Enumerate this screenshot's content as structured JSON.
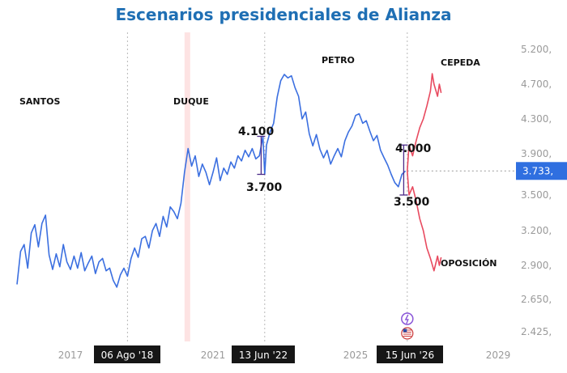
{
  "chart_data": {
    "type": "line",
    "title": "Escenarios presidenciales de Alianza",
    "y_ticks": [
      "5.200,",
      "4.700,",
      "4.300,",
      "3.900,",
      "3.500,",
      "3.200,",
      "2.900,",
      "2.650,",
      "2.425,"
    ],
    "x_ticks": [
      "2017",
      "2021",
      "2025",
      "2029"
    ],
    "x_badges": [
      "06 Ago '18",
      "13 Jun '22",
      "15 Jun '26"
    ],
    "current_price": {
      "value": 3733,
      "label": "3.733,"
    },
    "eras": [
      "SANTOS",
      "DUQUE",
      "PETRO",
      "CEPEDA",
      "OPOSICIÓN"
    ],
    "annotations": [
      "4.100",
      "3.700",
      "4.000",
      "3.500"
    ],
    "series": [
      {
        "color": "#3b6fe0",
        "points": [
          [
            2015.5,
            2760
          ],
          [
            2015.6,
            3020
          ],
          [
            2015.7,
            3080
          ],
          [
            2015.8,
            2880
          ],
          [
            2015.9,
            3180
          ],
          [
            2016.0,
            3250
          ],
          [
            2016.1,
            3060
          ],
          [
            2016.2,
            3260
          ],
          [
            2016.3,
            3330
          ],
          [
            2016.4,
            2990
          ],
          [
            2016.5,
            2870
          ],
          [
            2016.6,
            3000
          ],
          [
            2016.7,
            2890
          ],
          [
            2016.8,
            3080
          ],
          [
            2016.9,
            2930
          ],
          [
            2017.0,
            2870
          ],
          [
            2017.1,
            2980
          ],
          [
            2017.2,
            2880
          ],
          [
            2017.3,
            3010
          ],
          [
            2017.4,
            2860
          ],
          [
            2017.5,
            2920
          ],
          [
            2017.6,
            2980
          ],
          [
            2017.7,
            2840
          ],
          [
            2017.8,
            2930
          ],
          [
            2017.9,
            2960
          ],
          [
            2018.0,
            2860
          ],
          [
            2018.1,
            2880
          ],
          [
            2018.2,
            2790
          ],
          [
            2018.3,
            2740
          ],
          [
            2018.4,
            2830
          ],
          [
            2018.5,
            2880
          ],
          [
            2018.6,
            2820
          ],
          [
            2018.7,
            2960
          ],
          [
            2018.8,
            3050
          ],
          [
            2018.9,
            2970
          ],
          [
            2019.0,
            3130
          ],
          [
            2019.1,
            3150
          ],
          [
            2019.2,
            3050
          ],
          [
            2019.3,
            3200
          ],
          [
            2019.4,
            3260
          ],
          [
            2019.5,
            3150
          ],
          [
            2019.6,
            3320
          ],
          [
            2019.7,
            3230
          ],
          [
            2019.8,
            3400
          ],
          [
            2019.9,
            3360
          ],
          [
            2020.0,
            3300
          ],
          [
            2020.1,
            3430
          ],
          [
            2020.2,
            3720
          ],
          [
            2020.3,
            3960
          ],
          [
            2020.4,
            3780
          ],
          [
            2020.5,
            3880
          ],
          [
            2020.6,
            3680
          ],
          [
            2020.7,
            3800
          ],
          [
            2020.8,
            3720
          ],
          [
            2020.9,
            3600
          ],
          [
            2021.0,
            3720
          ],
          [
            2021.1,
            3860
          ],
          [
            2021.2,
            3640
          ],
          [
            2021.3,
            3760
          ],
          [
            2021.4,
            3700
          ],
          [
            2021.5,
            3820
          ],
          [
            2021.6,
            3760
          ],
          [
            2021.7,
            3880
          ],
          [
            2021.8,
            3830
          ],
          [
            2021.9,
            3940
          ],
          [
            2022.0,
            3870
          ],
          [
            2022.1,
            3960
          ],
          [
            2022.2,
            3850
          ],
          [
            2022.3,
            3880
          ],
          [
            2022.4,
            4100
          ],
          [
            2022.45,
            3700
          ],
          [
            2022.5,
            4000
          ],
          [
            2022.6,
            4150
          ],
          [
            2022.7,
            4250
          ],
          [
            2022.8,
            4550
          ],
          [
            2022.9,
            4750
          ],
          [
            2023.0,
            4840
          ],
          [
            2023.1,
            4790
          ],
          [
            2023.2,
            4820
          ],
          [
            2023.3,
            4660
          ],
          [
            2023.4,
            4560
          ],
          [
            2023.5,
            4300
          ],
          [
            2023.6,
            4380
          ],
          [
            2023.7,
            4130
          ],
          [
            2023.8,
            3990
          ],
          [
            2023.9,
            4120
          ],
          [
            2024.0,
            3950
          ],
          [
            2024.1,
            3860
          ],
          [
            2024.2,
            3940
          ],
          [
            2024.3,
            3800
          ],
          [
            2024.4,
            3880
          ],
          [
            2024.5,
            3960
          ],
          [
            2024.6,
            3870
          ],
          [
            2024.7,
            4050
          ],
          [
            2024.8,
            4150
          ],
          [
            2024.9,
            4220
          ],
          [
            2025.0,
            4340
          ],
          [
            2025.1,
            4360
          ],
          [
            2025.2,
            4250
          ],
          [
            2025.3,
            4280
          ],
          [
            2025.4,
            4160
          ],
          [
            2025.5,
            4050
          ],
          [
            2025.6,
            4110
          ],
          [
            2025.7,
            3940
          ],
          [
            2025.8,
            3860
          ],
          [
            2025.9,
            3790
          ],
          [
            2026.0,
            3700
          ],
          [
            2026.1,
            3620
          ],
          [
            2026.2,
            3580
          ],
          [
            2026.3,
            3700
          ],
          [
            2026.4,
            3733
          ]
        ]
      },
      {
        "color": "#e84a5f",
        "points": [
          [
            2026.45,
            3733
          ],
          [
            2026.5,
            4000
          ],
          [
            2026.6,
            3880
          ],
          [
            2026.7,
            4050
          ],
          [
            2026.8,
            4200
          ],
          [
            2026.9,
            4300
          ],
          [
            2027.0,
            4450
          ],
          [
            2027.1,
            4620
          ],
          [
            2027.15,
            4850
          ],
          [
            2027.2,
            4700
          ],
          [
            2027.3,
            4560
          ],
          [
            2027.35,
            4700
          ],
          [
            2027.4,
            4600
          ]
        ]
      },
      {
        "color": "#e84a5f",
        "points": [
          [
            2026.45,
            3733
          ],
          [
            2026.5,
            3500
          ],
          [
            2026.6,
            3580
          ],
          [
            2026.7,
            3450
          ],
          [
            2026.8,
            3300
          ],
          [
            2026.9,
            3200
          ],
          [
            2027.0,
            3050
          ],
          [
            2027.1,
            2960
          ],
          [
            2027.2,
            2860
          ],
          [
            2027.3,
            2980
          ],
          [
            2027.35,
            2900
          ],
          [
            2027.4,
            2970
          ]
        ]
      }
    ]
  }
}
